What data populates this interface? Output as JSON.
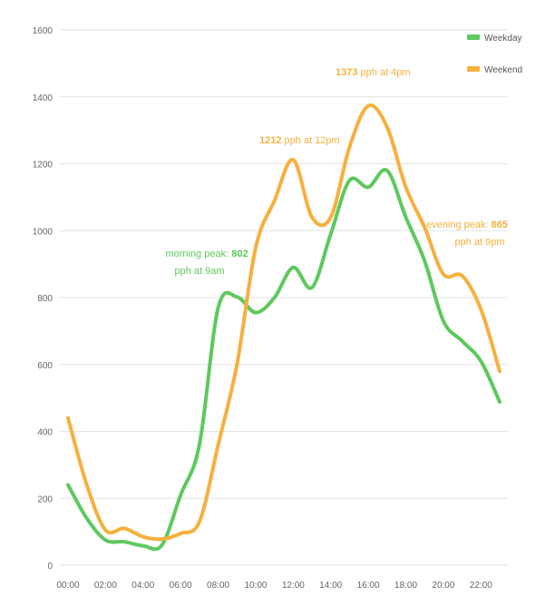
{
  "chart_data": {
    "type": "line",
    "title": "",
    "xlabel": "",
    "ylabel": "",
    "ylim": [
      0,
      1600
    ],
    "xlim": [
      0,
      23
    ],
    "grid": true,
    "legend_position": "top-right",
    "x": [
      0,
      1,
      2,
      3,
      4,
      5,
      6,
      7,
      8,
      9,
      10,
      11,
      12,
      13,
      14,
      15,
      16,
      17,
      18,
      19,
      20,
      21,
      22,
      23
    ],
    "x_tick_values": [
      0,
      2,
      4,
      6,
      8,
      10,
      12,
      14,
      16,
      18,
      20,
      22
    ],
    "x_tick_labels": [
      "00:00",
      "02:00",
      "04:00",
      "06:00",
      "08:00",
      "10:00",
      "12:00",
      "14:00",
      "16:00",
      "18:00",
      "20:00",
      "22:00"
    ],
    "y_ticks": [
      0,
      200,
      400,
      600,
      800,
      1000,
      1200,
      1400,
      1600
    ],
    "series": [
      {
        "name": "Weekday",
        "color": "#5ec85e",
        "values": [
          240,
          140,
          75,
          70,
          58,
          60,
          210,
          360,
          770,
          802,
          755,
          800,
          890,
          830,
          990,
          1150,
          1130,
          1180,
          1040,
          910,
          730,
          670,
          610,
          488
        ]
      },
      {
        "name": "Weekend",
        "color": "#f5b03e",
        "values": [
          440,
          240,
          105,
          110,
          85,
          78,
          95,
          130,
          360,
          600,
          950,
          1090,
          1212,
          1040,
          1040,
          1250,
          1373,
          1310,
          1130,
          1010,
          870,
          865,
          765,
          580
        ]
      }
    ],
    "annotations": [
      {
        "series": "Weekday",
        "text": "morning peak: ",
        "value": "802",
        "suffix": "pph at 9am"
      },
      {
        "series": "Weekend",
        "text": "",
        "value": "1212",
        "suffix": " pph at 12pm"
      },
      {
        "series": "Weekend",
        "text": "",
        "value": "1373",
        "suffix": " pph at 4pm"
      },
      {
        "series": "Weekend",
        "text": "evening peak: ",
        "value": "865",
        "suffix": "pph at 9pm"
      }
    ]
  }
}
